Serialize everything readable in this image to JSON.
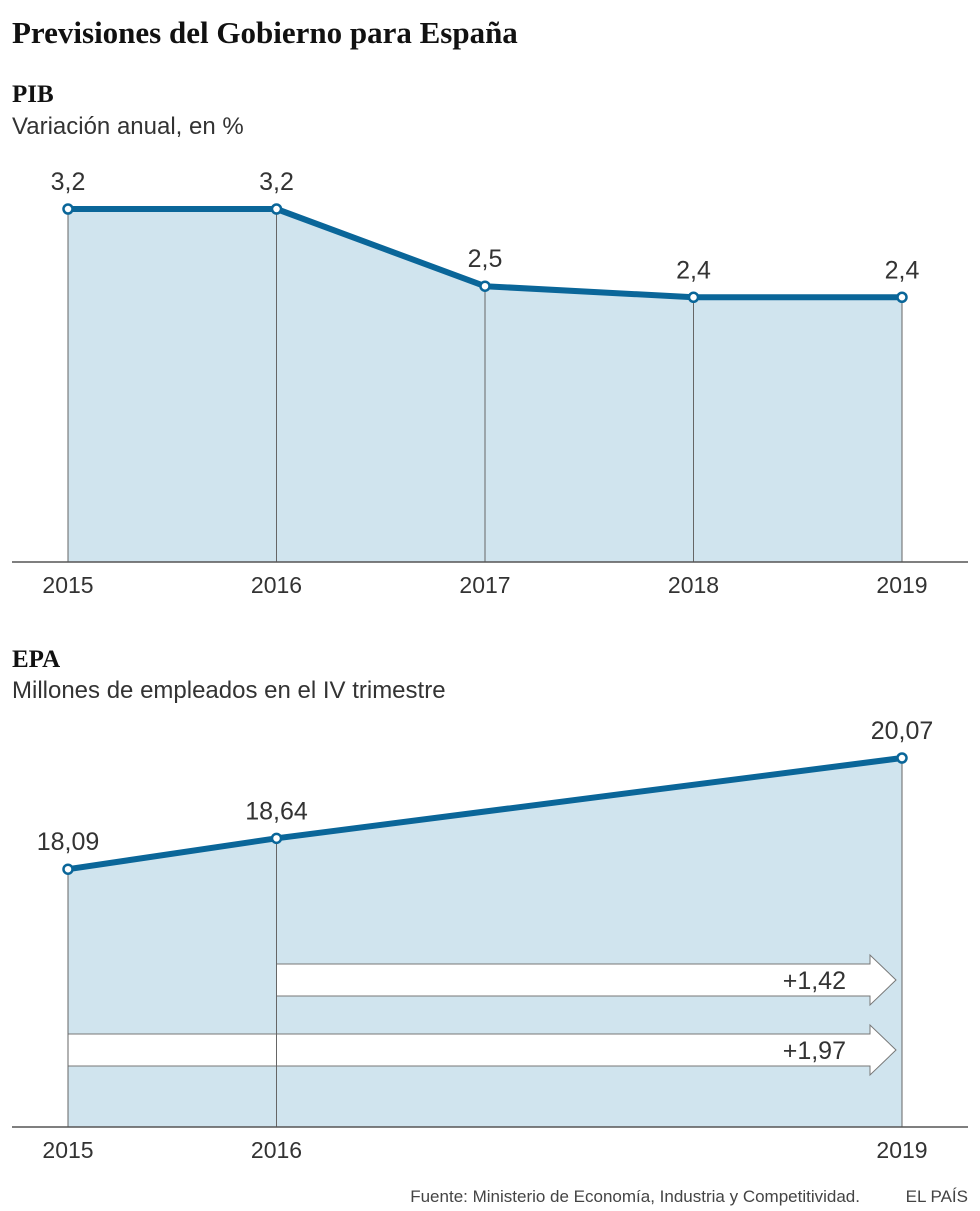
{
  "title": "Previsiones del Gobierno para España",
  "source": "Fuente: Ministerio de Economía, Industria y Competitividad.",
  "brand": "EL PAÍS",
  "colors": {
    "line": "#0a6699",
    "area": "#d0e4ee",
    "marker_fill": "#ffffff",
    "axis": "#555555"
  },
  "chart_data": [
    {
      "type": "area",
      "title": "PIB",
      "subtitle": "Variación anual, en %",
      "x": [
        "2015",
        "2016",
        "2017",
        "2018",
        "2019"
      ],
      "values": [
        3.2,
        3.2,
        2.5,
        2.4,
        2.4
      ],
      "value_labels": [
        "3,2",
        "3,2",
        "2,5",
        "2,4",
        "2,4"
      ],
      "ylim": [
        0,
        3.2
      ],
      "grid": false
    },
    {
      "type": "area",
      "title": "EPA",
      "subtitle": "Millones de empleados en el IV trimestre",
      "x": [
        "2015",
        "2016",
        "2019"
      ],
      "x_years": [
        2015,
        2016,
        2019
      ],
      "values": [
        18.09,
        18.64,
        20.07
      ],
      "value_labels": [
        "18,09",
        "18,64",
        "20,07"
      ],
      "ylim": [
        13.5,
        20.07
      ],
      "grid": false,
      "annotations": [
        {
          "from": "2016",
          "to": "2019",
          "text": "+1,42"
        },
        {
          "from": "2015",
          "to": "2019",
          "text": "+1,97"
        }
      ]
    }
  ]
}
